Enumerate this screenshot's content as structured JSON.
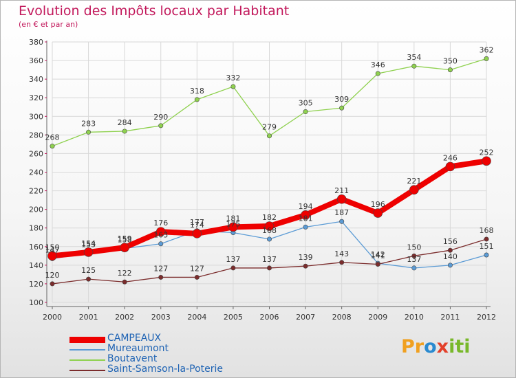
{
  "chart_data": {
    "type": "line",
    "title": "Evolution des Impôts locaux par Habitant",
    "subtitle": "(en € et par an)",
    "x": [
      "2000",
      "2001",
      "2002",
      "2003",
      "2004",
      "2005",
      "2006",
      "2007",
      "2008",
      "2009",
      "2010",
      "2011",
      "2012"
    ],
    "ylim": [
      100,
      380
    ],
    "yticks": [
      100,
      120,
      140,
      160,
      180,
      200,
      220,
      240,
      260,
      280,
      300,
      320,
      340,
      360,
      380
    ],
    "grid": true,
    "legend_position": "bottom-left",
    "series": [
      {
        "name": "CAMPEAUX",
        "color": "#ee0000",
        "values": [
          150,
          154,
          159,
          176,
          174,
          181,
          182,
          194,
          211,
          196,
          221,
          246,
          252
        ]
      },
      {
        "name": "Mureaumont",
        "color": "#5b9bd5",
        "values": [
          147,
          153,
          158,
          163,
          177,
          175,
          168,
          181,
          187,
          142,
          137,
          140,
          151
        ]
      },
      {
        "name": "Boutavent",
        "color": "#8fd14f",
        "values": [
          268,
          283,
          284,
          290,
          318,
          332,
          279,
          305,
          309,
          346,
          354,
          350,
          362
        ]
      },
      {
        "name": "Saint-Samson-la-Poterie",
        "color": "#7b2c2c",
        "values": [
          120,
          125,
          122,
          127,
          127,
          137,
          137,
          139,
          143,
          141,
          150,
          156,
          168
        ]
      }
    ]
  },
  "logo": {
    "p": "Pr",
    "o": "o",
    "x": "x",
    "i": "iti"
  }
}
